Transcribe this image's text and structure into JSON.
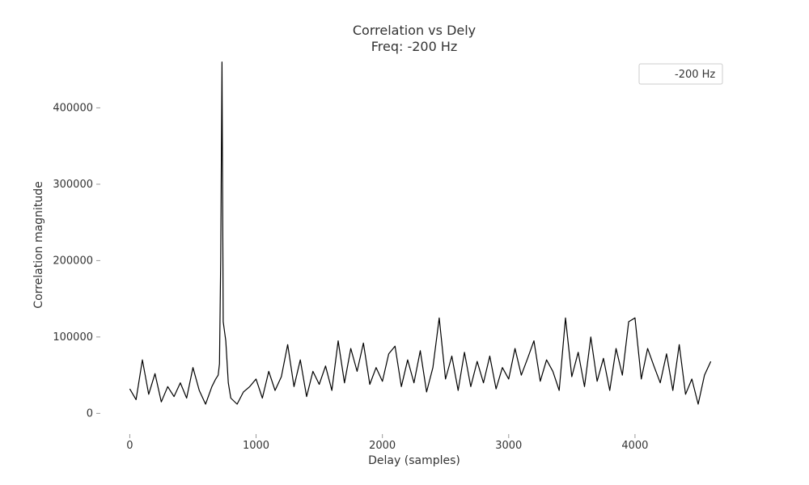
{
  "chart_data": {
    "type": "line",
    "title": "Correlation vs Dely",
    "subtitle": "Freq: -200 Hz",
    "xlabel": "Delay (samples)",
    "ylabel": "Correlation magnitude",
    "xlim": [
      -150,
      4750
    ],
    "ylim": [
      -25000,
      465000
    ],
    "xticks": [
      0,
      1000,
      2000,
      3000,
      4000
    ],
    "xtick_labels": [
      "0",
      "1000",
      "2000",
      "3000",
      "4000"
    ],
    "yticks": [
      0,
      100000,
      200000,
      300000,
      400000
    ],
    "ytick_labels": [
      "0",
      "100000",
      "200000",
      "300000",
      "400000"
    ],
    "grid": false,
    "legend_position": "top-right",
    "colors": {
      "line": "#000000",
      "text": "#333333",
      "legend_border": "#cccccc"
    },
    "series": [
      {
        "name": "-200 Hz",
        "x": [
          0,
          50,
          100,
          150,
          200,
          250,
          300,
          350,
          400,
          450,
          500,
          550,
          600,
          650,
          680,
          700,
          710,
          720,
          730,
          740,
          760,
          780,
          800,
          850,
          900,
          950,
          1000,
          1050,
          1100,
          1150,
          1200,
          1250,
          1300,
          1350,
          1400,
          1450,
          1500,
          1550,
          1600,
          1650,
          1700,
          1750,
          1800,
          1850,
          1900,
          1950,
          2000,
          2050,
          2100,
          2150,
          2200,
          2250,
          2300,
          2350,
          2400,
          2450,
          2500,
          2550,
          2600,
          2650,
          2700,
          2750,
          2800,
          2850,
          2900,
          2950,
          3000,
          3050,
          3100,
          3150,
          3200,
          3250,
          3300,
          3350,
          3400,
          3450,
          3500,
          3550,
          3600,
          3650,
          3700,
          3750,
          3800,
          3850,
          3900,
          3950,
          4000,
          4050,
          4100,
          4150,
          4200,
          4250,
          4300,
          4350,
          4400,
          4450,
          4500,
          4550,
          4600
        ],
        "values": [
          32000,
          18000,
          70000,
          25000,
          52000,
          15000,
          35000,
          22000,
          40000,
          20000,
          60000,
          30000,
          12000,
          35000,
          45000,
          50000,
          65000,
          200000,
          460000,
          120000,
          95000,
          40000,
          20000,
          12000,
          28000,
          35000,
          45000,
          20000,
          55000,
          30000,
          48000,
          90000,
          35000,
          70000,
          22000,
          55000,
          38000,
          62000,
          30000,
          95000,
          40000,
          85000,
          55000,
          92000,
          38000,
          60000,
          42000,
          78000,
          88000,
          35000,
          70000,
          40000,
          82000,
          28000,
          60000,
          125000,
          45000,
          75000,
          30000,
          80000,
          35000,
          68000,
          40000,
          75000,
          32000,
          60000,
          45000,
          85000,
          50000,
          72000,
          95000,
          42000,
          70000,
          55000,
          30000,
          125000,
          48000,
          80000,
          35000,
          100000,
          42000,
          72000,
          30000,
          85000,
          50000,
          120000,
          125000,
          45000,
          85000,
          62000,
          40000,
          78000,
          30000,
          90000,
          25000,
          45000,
          12000,
          50000,
          68000
        ]
      }
    ]
  }
}
